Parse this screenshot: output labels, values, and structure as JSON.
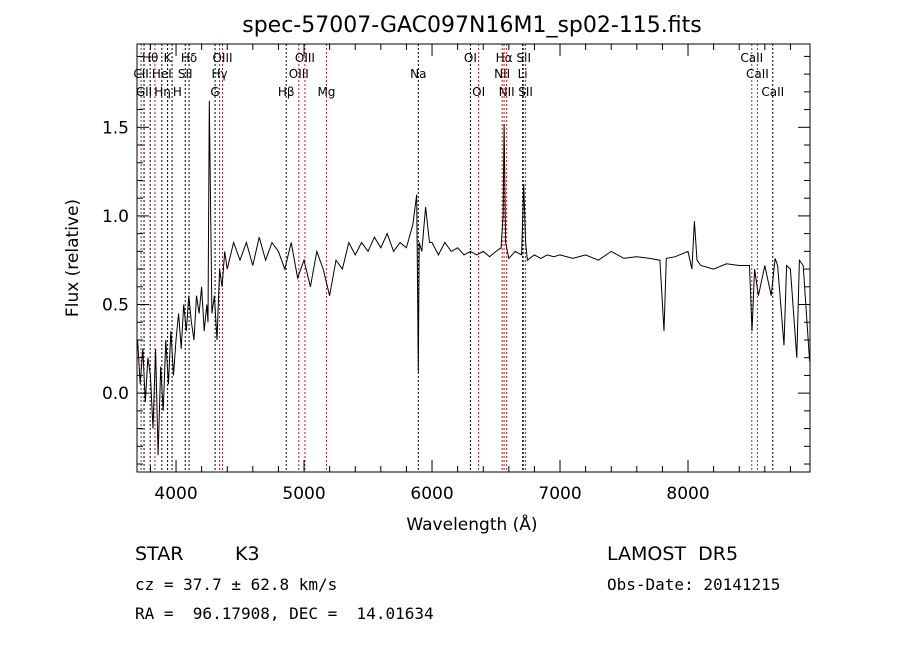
{
  "chart_data": {
    "type": "line",
    "title": "spec-57007-GAC097N16M1_sp02-115.fits",
    "xlabel": "Wavelength (Å)",
    "ylabel": "Flux (relative)",
    "xlim": [
      3695,
      8953
    ],
    "ylim": [
      -0.445,
      1.97
    ],
    "xticks": [
      4000,
      5000,
      6000,
      7000,
      8000
    ],
    "xtick_labels": [
      "4000",
      "5000",
      "6000",
      "7000",
      "8000"
    ],
    "yticks": [
      0.0,
      0.5,
      1.0,
      1.5
    ],
    "ytick_labels": [
      "0.0",
      "0.5",
      "1.0",
      "1.5"
    ],
    "grid": false,
    "series": [
      {
        "name": "spectrum",
        "color": "#000000",
        "x": [
          3700,
          3720,
          3740,
          3760,
          3780,
          3800,
          3820,
          3840,
          3860,
          3880,
          3900,
          3920,
          3940,
          3960,
          3980,
          4000,
          4020,
          4040,
          4060,
          4080,
          4100,
          4120,
          4140,
          4160,
          4180,
          4200,
          4220,
          4240,
          4250,
          4260,
          4280,
          4300,
          4320,
          4340,
          4360,
          4380,
          4400,
          4450,
          4500,
          4550,
          4600,
          4650,
          4700,
          4750,
          4800,
          4850,
          4900,
          4950,
          5000,
          5050,
          5100,
          5150,
          5200,
          5250,
          5300,
          5350,
          5400,
          5450,
          5500,
          5550,
          5600,
          5650,
          5700,
          5750,
          5800,
          5850,
          5880,
          5893,
          5900,
          5920,
          5950,
          5980,
          6000,
          6050,
          6100,
          6150,
          6200,
          6250,
          6300,
          6350,
          6400,
          6450,
          6500,
          6540,
          6555,
          6563,
          6575,
          6600,
          6650,
          6700,
          6716,
          6731,
          6745,
          6800,
          6850,
          6900,
          6950,
          7000,
          7100,
          7200,
          7300,
          7400,
          7500,
          7600,
          7700,
          7780,
          7812,
          7830,
          7900,
          8000,
          8030,
          8050,
          8070,
          8100,
          8200,
          8300,
          8400,
          8480,
          8500,
          8520,
          8550,
          8600,
          8650,
          8680,
          8700,
          8750,
          8770,
          8800,
          8850,
          8870,
          8900,
          8950
        ],
        "y": [
          0.3,
          0.05,
          0.25,
          -0.05,
          0.2,
          0.1,
          -0.2,
          0.25,
          -0.35,
          0.15,
          -0.1,
          0.3,
          0.05,
          0.35,
          0.1,
          0.3,
          0.45,
          0.25,
          0.5,
          0.35,
          0.55,
          0.4,
          0.3,
          0.55,
          0.45,
          0.6,
          0.35,
          0.5,
          0.4,
          1.65,
          0.45,
          0.55,
          0.3,
          0.7,
          0.6,
          0.8,
          0.7,
          0.85,
          0.75,
          0.85,
          0.72,
          0.88,
          0.75,
          0.85,
          0.8,
          0.7,
          0.85,
          0.65,
          0.75,
          0.6,
          0.8,
          0.7,
          0.55,
          0.75,
          0.7,
          0.85,
          0.78,
          0.85,
          0.8,
          0.88,
          0.82,
          0.9,
          0.8,
          0.85,
          0.82,
          0.95,
          1.12,
          0.12,
          0.85,
          0.8,
          1.05,
          0.85,
          0.85,
          0.78,
          0.85,
          0.8,
          0.82,
          0.78,
          0.8,
          0.78,
          0.8,
          0.77,
          0.8,
          0.82,
          1.0,
          1.52,
          0.85,
          0.76,
          0.8,
          0.78,
          1.18,
          0.85,
          0.75,
          0.78,
          0.76,
          0.78,
          0.77,
          0.78,
          0.76,
          0.78,
          0.75,
          0.8,
          0.76,
          0.77,
          0.76,
          0.75,
          0.35,
          0.76,
          0.77,
          0.8,
          0.7,
          0.97,
          0.75,
          0.72,
          0.7,
          0.73,
          0.72,
          0.72,
          0.35,
          0.7,
          0.55,
          0.72,
          0.55,
          0.76,
          0.72,
          0.27,
          0.72,
          0.7,
          0.2,
          0.75,
          0.72,
          0.18
        ]
      }
    ],
    "lines": [
      {
        "name": "Hθ",
        "wave": 3798,
        "color": "#000000"
      },
      {
        "name": "K",
        "wave": 3934,
        "color": "#000000"
      },
      {
        "name": "Hδ",
        "wave": 4102,
        "color": "#000000"
      },
      {
        "name": "OIII",
        "wave": 4363,
        "color": "#b22222"
      },
      {
        "name": "OIII",
        "wave": 5007,
        "color": "#b22222"
      },
      {
        "name": "OI",
        "wave": 6300,
        "color": "#000000"
      },
      {
        "name": "Hα",
        "wave": 6563,
        "color": "#b22222"
      },
      {
        "name": "SII",
        "wave": 6716,
        "color": "#b22222"
      },
      {
        "name": "CaII",
        "wave": 8498,
        "color": "#b22222"
      },
      {
        "name": "CII",
        "wave": 3727,
        "color": "#b22222"
      },
      {
        "name": "HeI",
        "wave": 3889,
        "color": "#000000"
      },
      {
        "name": "SII",
        "wave": 4072,
        "color": "#000000"
      },
      {
        "name": "Hγ",
        "wave": 4340,
        "color": "#b22222"
      },
      {
        "name": "OIII",
        "wave": 4959,
        "color": "#b22222"
      },
      {
        "name": "Na",
        "wave": 5893,
        "color": "#000000"
      },
      {
        "name": "NII",
        "wave": 6548,
        "color": "#b22222"
      },
      {
        "name": "Li",
        "wave": 6708,
        "color": "#000000"
      },
      {
        "name": "CaII",
        "wave": 8542,
        "color": "#b22222"
      },
      {
        "name": "GII",
        "wave": 3750,
        "color": "#000000"
      },
      {
        "name": "Hη",
        "wave": 3835,
        "color": "#b22222"
      },
      {
        "name": "H",
        "wave": 3969,
        "color": "#000000"
      },
      {
        "name": "G",
        "wave": 4305,
        "color": "#000000"
      },
      {
        "name": "Hβ",
        "wave": 4861,
        "color": "#000000"
      },
      {
        "name": "Mg",
        "wave": 5175,
        "color": "#b22222"
      },
      {
        "name": "OI",
        "wave": 6364,
        "color": "#b22222"
      },
      {
        "name": "NII",
        "wave": 6583,
        "color": "#b22222"
      },
      {
        "name": "SII",
        "wave": 6731,
        "color": "#b22222"
      },
      {
        "name": "CaII",
        "wave": 8662,
        "color": "#000000"
      }
    ]
  },
  "info": {
    "class": "STAR",
    "subclass": "K3",
    "cz": "cz = 37.7 ± 62.8 km/s",
    "coords": "RA =  96.17908, DEC =  14.01634",
    "survey": "LAMOST  DR5",
    "obs_date": "Obs-Date: 20141215"
  }
}
